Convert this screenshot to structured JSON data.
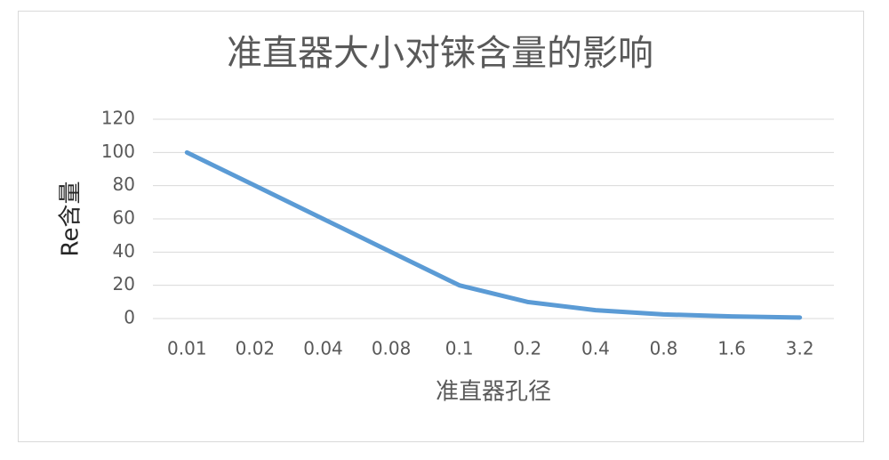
{
  "chart_data": {
    "type": "line",
    "title": "准直器大小对铼含量的影响",
    "x_label": "准直器孔径",
    "y_label": "Re含量",
    "categories": [
      "0.01",
      "0.02",
      "0.04",
      "0.08",
      "0.1",
      "0.2",
      "0.4",
      "0.8",
      "1.6",
      "3.2"
    ],
    "series": [
      {
        "name": "Re含量",
        "color": "#5b9bd5",
        "values": [
          100,
          80,
          60,
          40,
          20,
          10,
          5,
          2.5,
          1.25,
          0.6
        ]
      }
    ],
    "ylim": [
      0,
      120
    ],
    "yticks": [
      0,
      20,
      40,
      60,
      80,
      100,
      120
    ],
    "grid": true
  }
}
